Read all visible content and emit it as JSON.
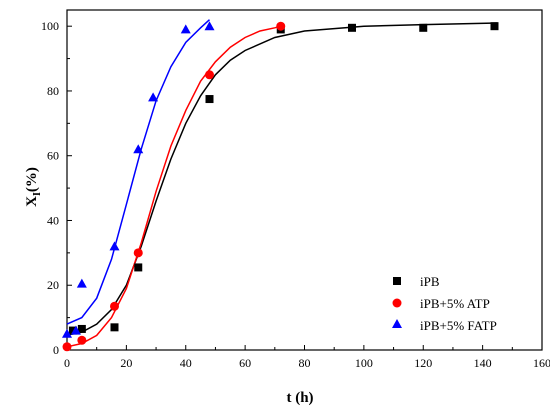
{
  "chart_data": {
    "type": "scatter",
    "xlabel": "t (h)",
    "ylabel_main": "X",
    "ylabel_sub": "I",
    "ylabel_rest": "(%)",
    "xlim": [
      0,
      160
    ],
    "ylim": [
      0,
      105
    ],
    "xticks": [
      0,
      20,
      40,
      60,
      80,
      100,
      120,
      140,
      160
    ],
    "yticks": [
      0,
      20,
      40,
      60,
      80,
      100
    ],
    "grid": false,
    "legend_position": "bottom-right",
    "series": [
      {
        "name": "iPB",
        "marker": "square",
        "color": "#000000",
        "points": [
          [
            2,
            6
          ],
          [
            5,
            6.5
          ],
          [
            16,
            7
          ],
          [
            24,
            25.5
          ],
          [
            48,
            77.5
          ],
          [
            72,
            99
          ],
          [
            96,
            99.5
          ],
          [
            120,
            99.5
          ],
          [
            144,
            100
          ]
        ],
        "fit": [
          [
            0,
            4.6
          ],
          [
            5,
            5.5
          ],
          [
            10,
            8
          ],
          [
            15,
            12.5
          ],
          [
            20,
            20
          ],
          [
            25,
            32
          ],
          [
            30,
            46
          ],
          [
            35,
            59
          ],
          [
            40,
            70
          ],
          [
            45,
            78.5
          ],
          [
            50,
            85
          ],
          [
            55,
            89.5
          ],
          [
            60,
            92.5
          ],
          [
            70,
            96.5
          ],
          [
            80,
            98.5
          ],
          [
            100,
            100
          ],
          [
            120,
            100.5
          ],
          [
            145,
            101
          ]
        ]
      },
      {
        "name": "iPB+5% ATP",
        "marker": "circle",
        "color": "#ff0000",
        "points": [
          [
            0,
            1
          ],
          [
            5,
            3
          ],
          [
            16,
            13.5
          ],
          [
            24,
            30
          ],
          [
            48,
            85
          ],
          [
            72,
            100
          ]
        ],
        "fit": [
          [
            0,
            1
          ],
          [
            5,
            2
          ],
          [
            10,
            4.5
          ],
          [
            15,
            10
          ],
          [
            20,
            19
          ],
          [
            25,
            33
          ],
          [
            30,
            49
          ],
          [
            35,
            63
          ],
          [
            40,
            74
          ],
          [
            45,
            83
          ],
          [
            50,
            89
          ],
          [
            55,
            93.5
          ],
          [
            60,
            96.5
          ],
          [
            65,
            98.5
          ],
          [
            70,
            99.5
          ],
          [
            72,
            100
          ]
        ]
      },
      {
        "name": "iPB+5% FATP",
        "marker": "triangle",
        "color": "#0000ff",
        "points": [
          [
            0,
            5
          ],
          [
            3,
            6
          ],
          [
            5,
            20.5
          ],
          [
            16,
            32
          ],
          [
            24,
            62
          ],
          [
            29,
            78
          ],
          [
            40,
            99
          ],
          [
            48,
            100
          ]
        ],
        "fit": [
          [
            0,
            8
          ],
          [
            5,
            10
          ],
          [
            10,
            16
          ],
          [
            15,
            28
          ],
          [
            20,
            45
          ],
          [
            25,
            62
          ],
          [
            30,
            77
          ],
          [
            35,
            87.5
          ],
          [
            40,
            95
          ],
          [
            45,
            99.5
          ],
          [
            48,
            102
          ]
        ]
      }
    ]
  }
}
